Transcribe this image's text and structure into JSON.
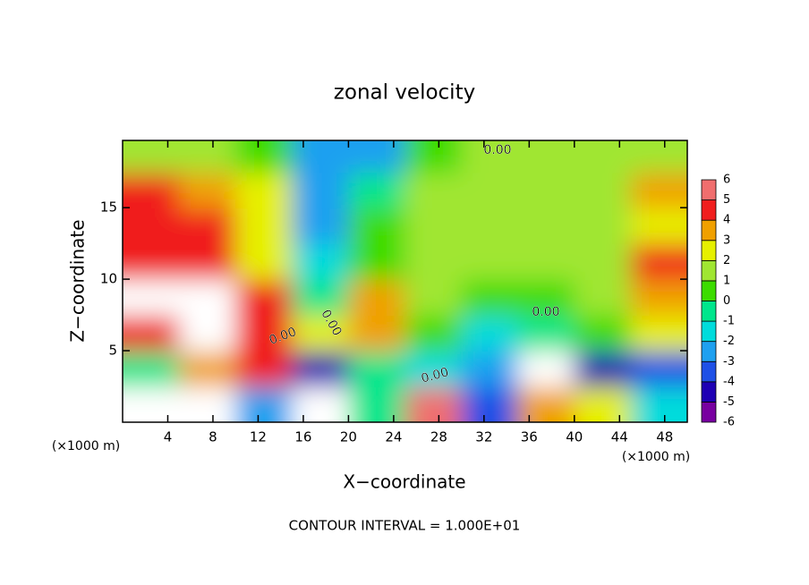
{
  "chart_data": {
    "type": "heatmap",
    "title": "zonal velocity",
    "xlabel": "X−coordinate",
    "ylabel": "Z−coordinate",
    "x_unit_label": "(×1000 m)",
    "y_unit_label": "(×1000 m)",
    "footer": "CONTOUR INTERVAL = 1.000E+01",
    "contour_labels": [
      "0.00",
      "0.00",
      "0.00",
      "0.00",
      "0.00"
    ],
    "xlim": [
      0,
      50
    ],
    "ylim": [
      0,
      19.7
    ],
    "xticks": [
      4,
      8,
      12,
      16,
      20,
      24,
      28,
      32,
      36,
      40,
      44,
      48
    ],
    "yticks": [
      5,
      10,
      15
    ],
    "x": [
      0,
      5,
      10,
      15,
      20,
      25,
      30,
      35,
      40,
      45,
      50
    ],
    "y": [
      0,
      2.5,
      5,
      7.5,
      10,
      12.5,
      15,
      17.5,
      19.7
    ],
    "z": [
      [
        8,
        8,
        -3,
        7,
        -1,
        5,
        -4,
        3,
        2,
        -2
      ],
      [
        -1,
        3,
        4,
        -5,
        -1,
        -2,
        -3,
        8,
        -5,
        -4
      ],
      [
        4,
        8,
        4,
        2,
        3,
        0,
        -2,
        -1,
        0,
        2
      ],
      [
        8,
        8,
        4,
        -1,
        3,
        1,
        0,
        0,
        1,
        3
      ],
      [
        4,
        4,
        2,
        -2,
        0,
        1,
        1,
        1,
        1,
        4
      ],
      [
        4,
        4,
        2,
        -3,
        0,
        1,
        1,
        1,
        1,
        2
      ],
      [
        4,
        3,
        2,
        -3,
        -1,
        1,
        1,
        1,
        1,
        3
      ],
      [
        1,
        1,
        0,
        -3,
        -3,
        0,
        1,
        1,
        1,
        1
      ]
    ],
    "colorbar": {
      "ticks": [
        -6,
        -5,
        -4,
        -3,
        -2,
        -1,
        0,
        1,
        2,
        3,
        4,
        5,
        6
      ],
      "colors": [
        "#7800a0",
        "#1e00b4",
        "#1e50e6",
        "#1ea0f0",
        "#00dcdc",
        "#00e68c",
        "#3cdc00",
        "#a0e632",
        "#e6f000",
        "#f0a000",
        "#f01e1e",
        "#f06e6e"
      ]
    }
  }
}
